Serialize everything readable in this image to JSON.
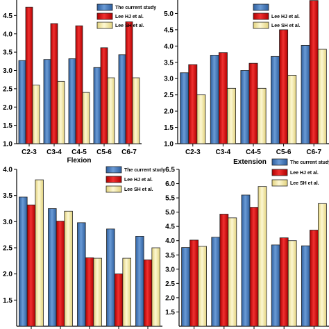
{
  "colors": {
    "current": "#4f81bd",
    "lee_hj": "#e31a1c",
    "lee_sh": "#f5eeb0"
  },
  "chart_data": [
    {
      "type": "bar",
      "caption": "Flexion",
      "categories": [
        "C2-3",
        "C3-4",
        "C4-5",
        "C5-6",
        "C6-7"
      ],
      "ylim": [
        1.0,
        5.0
      ],
      "yticks": [
        "1.0",
        "1.5",
        "2.0",
        "2.5",
        "3.0",
        "3.5",
        "4.0",
        "4.5",
        "5.0"
      ],
      "series": [
        {
          "name": "The current study",
          "values": [
            3.27,
            3.3,
            3.32,
            3.08,
            3.43
          ]
        },
        {
          "name": "Lee HJ et al.",
          "values": [
            4.73,
            4.28,
            4.22,
            3.62,
            4.33
          ]
        },
        {
          "name": "Lee SH et al.",
          "values": [
            2.6,
            2.7,
            2.4,
            2.8,
            2.8
          ]
        }
      ]
    },
    {
      "type": "bar",
      "caption": "Extension",
      "categories": [
        "C2-3",
        "C3-4",
        "C4-5",
        "C5-6",
        "C6-7"
      ],
      "ylim": [
        1.0,
        5.5
      ],
      "yticks": [
        "1.0",
        "1.5",
        "2.0",
        "2.5",
        "3.0",
        "3.5",
        "4.0",
        "4.5",
        "5.0",
        "5.5"
      ],
      "series": [
        {
          "name": "",
          "values": [
            3.18,
            3.72,
            3.25,
            3.68,
            4.02
          ]
        },
        {
          "name": "Lee HJ et al.",
          "values": [
            3.43,
            3.8,
            3.47,
            4.5,
            5.4
          ]
        },
        {
          "name": "Lee SH et al.",
          "values": [
            2.5,
            2.7,
            2.7,
            3.1,
            3.9
          ]
        }
      ]
    },
    {
      "type": "bar",
      "caption": "",
      "categories": [
        "",
        "",
        "",
        "",
        ""
      ],
      "ylim": [
        1.0,
        4.0
      ],
      "yticks": [
        "1.5",
        "2.0",
        "2.5",
        "3.0",
        "3.5",
        "4.0"
      ],
      "series": [
        {
          "name": "The current study",
          "values": [
            3.47,
            3.25,
            2.98,
            2.86,
            2.72
          ]
        },
        {
          "name": "Lee HJ et al.",
          "values": [
            3.32,
            3.01,
            2.31,
            2.0,
            2.27
          ]
        },
        {
          "name": "Lee SH et al.",
          "values": [
            3.8,
            3.2,
            2.3,
            2.3,
            2.5
          ]
        }
      ]
    },
    {
      "type": "bar",
      "caption": "",
      "categories": [
        "",
        "",
        "",
        "",
        ""
      ],
      "ylim": [
        1.0,
        6.5
      ],
      "yticks": [
        "1.5",
        "2.0",
        "2.5",
        "3.0",
        "3.5",
        "4.0",
        "4.5",
        "5.0",
        "5.5",
        "6.0",
        "6.5"
      ],
      "series": [
        {
          "name": "The current study",
          "values": [
            3.76,
            4.12,
            5.6,
            3.85,
            3.82
          ]
        },
        {
          "name": "Lee HJ et al.",
          "values": [
            4.02,
            4.93,
            5.17,
            4.1,
            4.37
          ]
        },
        {
          "name": "Lee SH et al.",
          "values": [
            3.8,
            4.8,
            5.9,
            4.0,
            5.3
          ]
        }
      ]
    }
  ]
}
